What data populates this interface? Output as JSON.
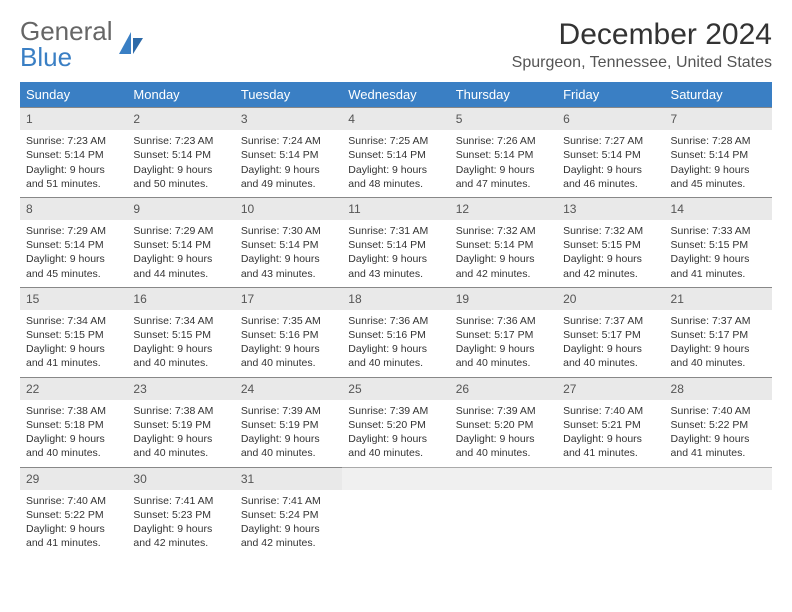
{
  "logo": {
    "part1": "General",
    "part2": "Blue"
  },
  "title": "December 2024",
  "location": "Spurgeon, Tennessee, United States",
  "colors": {
    "header_bg": "#3a7fc4",
    "header_fg": "#ffffff",
    "daynum_bg": "#e9e9e9",
    "text": "#333333"
  },
  "dayHeaders": [
    "Sunday",
    "Monday",
    "Tuesday",
    "Wednesday",
    "Thursday",
    "Friday",
    "Saturday"
  ],
  "weeks": [
    [
      {
        "n": "1",
        "sr": "Sunrise: 7:23 AM",
        "ss": "Sunset: 5:14 PM",
        "d1": "Daylight: 9 hours",
        "d2": "and 51 minutes."
      },
      {
        "n": "2",
        "sr": "Sunrise: 7:23 AM",
        "ss": "Sunset: 5:14 PM",
        "d1": "Daylight: 9 hours",
        "d2": "and 50 minutes."
      },
      {
        "n": "3",
        "sr": "Sunrise: 7:24 AM",
        "ss": "Sunset: 5:14 PM",
        "d1": "Daylight: 9 hours",
        "d2": "and 49 minutes."
      },
      {
        "n": "4",
        "sr": "Sunrise: 7:25 AM",
        "ss": "Sunset: 5:14 PM",
        "d1": "Daylight: 9 hours",
        "d2": "and 48 minutes."
      },
      {
        "n": "5",
        "sr": "Sunrise: 7:26 AM",
        "ss": "Sunset: 5:14 PM",
        "d1": "Daylight: 9 hours",
        "d2": "and 47 minutes."
      },
      {
        "n": "6",
        "sr": "Sunrise: 7:27 AM",
        "ss": "Sunset: 5:14 PM",
        "d1": "Daylight: 9 hours",
        "d2": "and 46 minutes."
      },
      {
        "n": "7",
        "sr": "Sunrise: 7:28 AM",
        "ss": "Sunset: 5:14 PM",
        "d1": "Daylight: 9 hours",
        "d2": "and 45 minutes."
      }
    ],
    [
      {
        "n": "8",
        "sr": "Sunrise: 7:29 AM",
        "ss": "Sunset: 5:14 PM",
        "d1": "Daylight: 9 hours",
        "d2": "and 45 minutes."
      },
      {
        "n": "9",
        "sr": "Sunrise: 7:29 AM",
        "ss": "Sunset: 5:14 PM",
        "d1": "Daylight: 9 hours",
        "d2": "and 44 minutes."
      },
      {
        "n": "10",
        "sr": "Sunrise: 7:30 AM",
        "ss": "Sunset: 5:14 PM",
        "d1": "Daylight: 9 hours",
        "d2": "and 43 minutes."
      },
      {
        "n": "11",
        "sr": "Sunrise: 7:31 AM",
        "ss": "Sunset: 5:14 PM",
        "d1": "Daylight: 9 hours",
        "d2": "and 43 minutes."
      },
      {
        "n": "12",
        "sr": "Sunrise: 7:32 AM",
        "ss": "Sunset: 5:14 PM",
        "d1": "Daylight: 9 hours",
        "d2": "and 42 minutes."
      },
      {
        "n": "13",
        "sr": "Sunrise: 7:32 AM",
        "ss": "Sunset: 5:15 PM",
        "d1": "Daylight: 9 hours",
        "d2": "and 42 minutes."
      },
      {
        "n": "14",
        "sr": "Sunrise: 7:33 AM",
        "ss": "Sunset: 5:15 PM",
        "d1": "Daylight: 9 hours",
        "d2": "and 41 minutes."
      }
    ],
    [
      {
        "n": "15",
        "sr": "Sunrise: 7:34 AM",
        "ss": "Sunset: 5:15 PM",
        "d1": "Daylight: 9 hours",
        "d2": "and 41 minutes."
      },
      {
        "n": "16",
        "sr": "Sunrise: 7:34 AM",
        "ss": "Sunset: 5:15 PM",
        "d1": "Daylight: 9 hours",
        "d2": "and 40 minutes."
      },
      {
        "n": "17",
        "sr": "Sunrise: 7:35 AM",
        "ss": "Sunset: 5:16 PM",
        "d1": "Daylight: 9 hours",
        "d2": "and 40 minutes."
      },
      {
        "n": "18",
        "sr": "Sunrise: 7:36 AM",
        "ss": "Sunset: 5:16 PM",
        "d1": "Daylight: 9 hours",
        "d2": "and 40 minutes."
      },
      {
        "n": "19",
        "sr": "Sunrise: 7:36 AM",
        "ss": "Sunset: 5:17 PM",
        "d1": "Daylight: 9 hours",
        "d2": "and 40 minutes."
      },
      {
        "n": "20",
        "sr": "Sunrise: 7:37 AM",
        "ss": "Sunset: 5:17 PM",
        "d1": "Daylight: 9 hours",
        "d2": "and 40 minutes."
      },
      {
        "n": "21",
        "sr": "Sunrise: 7:37 AM",
        "ss": "Sunset: 5:17 PM",
        "d1": "Daylight: 9 hours",
        "d2": "and 40 minutes."
      }
    ],
    [
      {
        "n": "22",
        "sr": "Sunrise: 7:38 AM",
        "ss": "Sunset: 5:18 PM",
        "d1": "Daylight: 9 hours",
        "d2": "and 40 minutes."
      },
      {
        "n": "23",
        "sr": "Sunrise: 7:38 AM",
        "ss": "Sunset: 5:19 PM",
        "d1": "Daylight: 9 hours",
        "d2": "and 40 minutes."
      },
      {
        "n": "24",
        "sr": "Sunrise: 7:39 AM",
        "ss": "Sunset: 5:19 PM",
        "d1": "Daylight: 9 hours",
        "d2": "and 40 minutes."
      },
      {
        "n": "25",
        "sr": "Sunrise: 7:39 AM",
        "ss": "Sunset: 5:20 PM",
        "d1": "Daylight: 9 hours",
        "d2": "and 40 minutes."
      },
      {
        "n": "26",
        "sr": "Sunrise: 7:39 AM",
        "ss": "Sunset: 5:20 PM",
        "d1": "Daylight: 9 hours",
        "d2": "and 40 minutes."
      },
      {
        "n": "27",
        "sr": "Sunrise: 7:40 AM",
        "ss": "Sunset: 5:21 PM",
        "d1": "Daylight: 9 hours",
        "d2": "and 41 minutes."
      },
      {
        "n": "28",
        "sr": "Sunrise: 7:40 AM",
        "ss": "Sunset: 5:22 PM",
        "d1": "Daylight: 9 hours",
        "d2": "and 41 minutes."
      }
    ],
    [
      {
        "n": "29",
        "sr": "Sunrise: 7:40 AM",
        "ss": "Sunset: 5:22 PM",
        "d1": "Daylight: 9 hours",
        "d2": "and 41 minutes."
      },
      {
        "n": "30",
        "sr": "Sunrise: 7:41 AM",
        "ss": "Sunset: 5:23 PM",
        "d1": "Daylight: 9 hours",
        "d2": "and 42 minutes."
      },
      {
        "n": "31",
        "sr": "Sunrise: 7:41 AM",
        "ss": "Sunset: 5:24 PM",
        "d1": "Daylight: 9 hours",
        "d2": "and 42 minutes."
      },
      {
        "n": "",
        "empty": true
      },
      {
        "n": "",
        "empty": true
      },
      {
        "n": "",
        "empty": true
      },
      {
        "n": "",
        "empty": true
      }
    ]
  ]
}
